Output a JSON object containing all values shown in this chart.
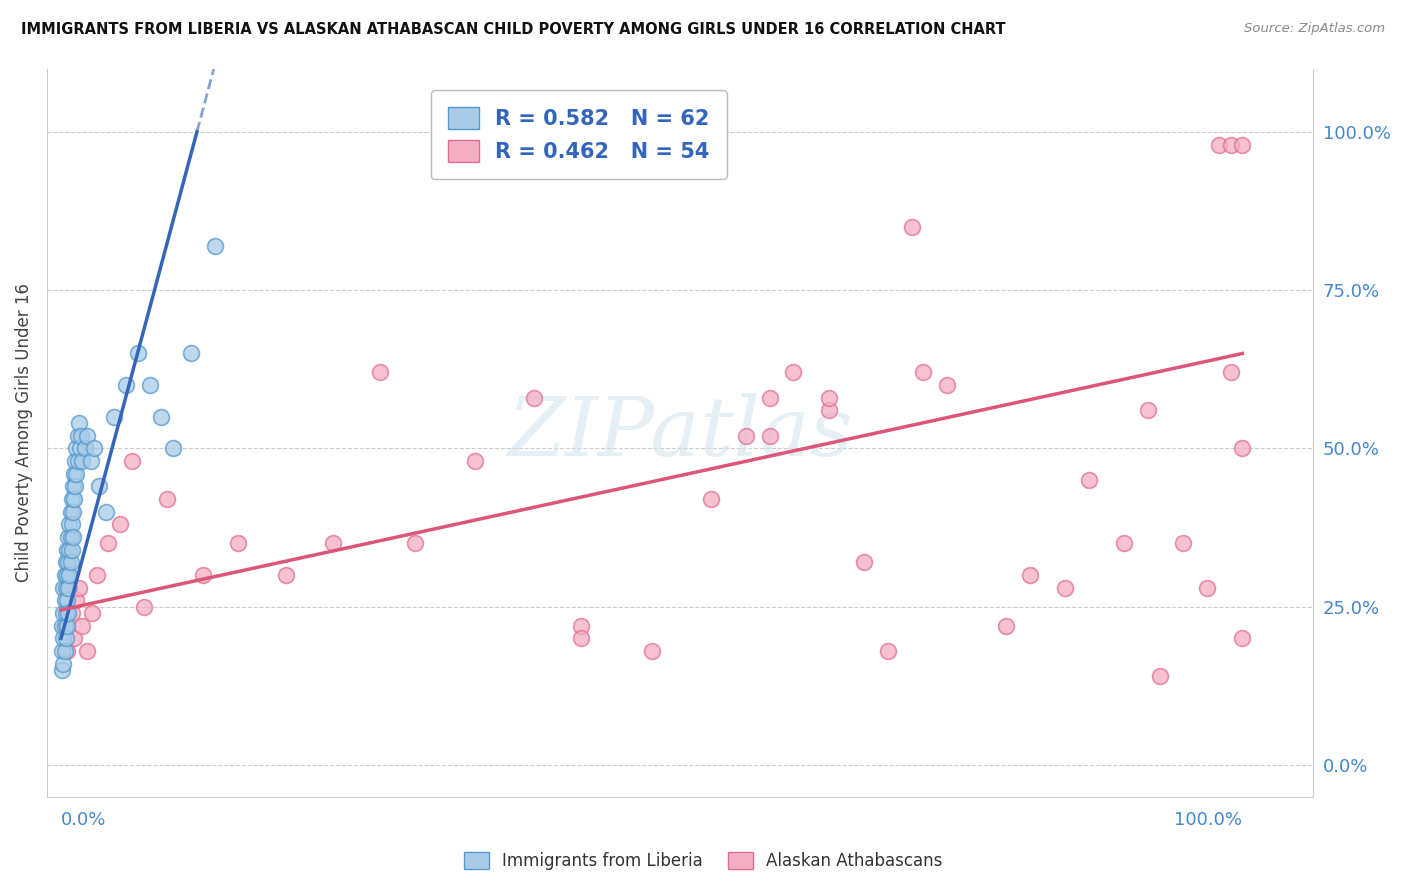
{
  "title": "IMMIGRANTS FROM LIBERIA VS ALASKAN ATHABASCAN CHILD POVERTY AMONG GIRLS UNDER 16 CORRELATION CHART",
  "source": "Source: ZipAtlas.com",
  "ylabel": "Child Poverty Among Girls Under 16",
  "blue_label": "Immigrants from Liberia",
  "pink_label": "Alaskan Athabascans",
  "blue_R": "0.582",
  "blue_N": "62",
  "pink_R": "0.462",
  "pink_N": "54",
  "blue_color": "#a8cce8",
  "pink_color": "#f4aec4",
  "blue_edge_color": "#5599cc",
  "pink_edge_color": "#e07090",
  "blue_line_color": "#3366bb",
  "pink_line_color": "#dd5577",
  "watermark_color": "#d0e4f0",
  "grid_color": "#cccccc",
  "background_color": "#ffffff",
  "title_color": "#111111",
  "source_color": "#888888",
  "tick_color": "#4488cc",
  "axis_label_color": "#444444",
  "legend_text_color": "#3366bb",
  "blue_x": [
    0.001,
    0.001,
    0.001,
    0.002,
    0.002,
    0.002,
    0.002,
    0.003,
    0.003,
    0.003,
    0.003,
    0.004,
    0.004,
    0.004,
    0.004,
    0.005,
    0.005,
    0.005,
    0.005,
    0.006,
    0.006,
    0.006,
    0.006,
    0.007,
    0.007,
    0.007,
    0.008,
    0.008,
    0.008,
    0.009,
    0.009,
    0.009,
    0.01,
    0.01,
    0.01,
    0.011,
    0.011,
    0.012,
    0.012,
    0.013,
    0.013,
    0.014,
    0.014,
    0.015,
    0.016,
    0.017,
    0.018,
    0.02,
    0.022,
    0.025,
    0.028,
    0.032,
    0.038,
    0.045,
    0.055,
    0.065,
    0.075,
    0.085,
    0.095,
    0.11,
    0.13,
    0.5
  ],
  "blue_y": [
    0.22,
    0.18,
    0.15,
    0.28,
    0.24,
    0.2,
    0.16,
    0.3,
    0.26,
    0.22,
    0.18,
    0.32,
    0.28,
    0.24,
    0.2,
    0.34,
    0.3,
    0.26,
    0.22,
    0.36,
    0.32,
    0.28,
    0.24,
    0.38,
    0.34,
    0.3,
    0.4,
    0.36,
    0.32,
    0.42,
    0.38,
    0.34,
    0.44,
    0.4,
    0.36,
    0.46,
    0.42,
    0.48,
    0.44,
    0.5,
    0.46,
    0.52,
    0.48,
    0.54,
    0.5,
    0.52,
    0.48,
    0.5,
    0.52,
    0.48,
    0.5,
    0.44,
    0.4,
    0.55,
    0.6,
    0.65,
    0.6,
    0.55,
    0.5,
    0.65,
    0.82,
    0.98
  ],
  "pink_x": [
    0.003,
    0.005,
    0.007,
    0.009,
    0.011,
    0.013,
    0.015,
    0.018,
    0.022,
    0.026,
    0.03,
    0.04,
    0.05,
    0.06,
    0.07,
    0.09,
    0.12,
    0.15,
    0.19,
    0.23,
    0.27,
    0.3,
    0.35,
    0.4,
    0.44,
    0.44,
    0.5,
    0.55,
    0.58,
    0.6,
    0.6,
    0.62,
    0.65,
    0.65,
    0.68,
    0.7,
    0.72,
    0.73,
    0.75,
    0.8,
    0.82,
    0.85,
    0.87,
    0.9,
    0.92,
    0.93,
    0.95,
    0.97,
    0.98,
    0.99,
    0.99,
    1.0,
    1.0,
    1.0
  ],
  "pink_y": [
    0.22,
    0.18,
    0.28,
    0.24,
    0.2,
    0.26,
    0.28,
    0.22,
    0.18,
    0.24,
    0.3,
    0.35,
    0.38,
    0.48,
    0.25,
    0.42,
    0.3,
    0.35,
    0.3,
    0.35,
    0.62,
    0.35,
    0.48,
    0.58,
    0.22,
    0.2,
    0.18,
    0.42,
    0.52,
    0.58,
    0.52,
    0.62,
    0.56,
    0.58,
    0.32,
    0.18,
    0.85,
    0.62,
    0.6,
    0.22,
    0.3,
    0.28,
    0.45,
    0.35,
    0.56,
    0.14,
    0.35,
    0.28,
    0.98,
    0.98,
    0.62,
    0.98,
    0.5,
    0.2
  ],
  "blue_trend_x0": 0.0,
  "blue_trend_y0": 0.2,
  "blue_trend_x1": 0.115,
  "blue_trend_y1": 1.0,
  "pink_trend_x0": 0.0,
  "pink_trend_y0": 0.245,
  "pink_trend_x1": 1.0,
  "pink_trend_y1": 0.65,
  "xlim": [
    -0.012,
    1.06
  ],
  "ylim": [
    -0.05,
    1.1
  ],
  "ytick_vals": [
    0.0,
    0.25,
    0.5,
    0.75,
    1.0
  ],
  "ytick_labels": [
    "0.0%",
    "25.0%",
    "50.0%",
    "75.0%",
    "100.0%"
  ]
}
